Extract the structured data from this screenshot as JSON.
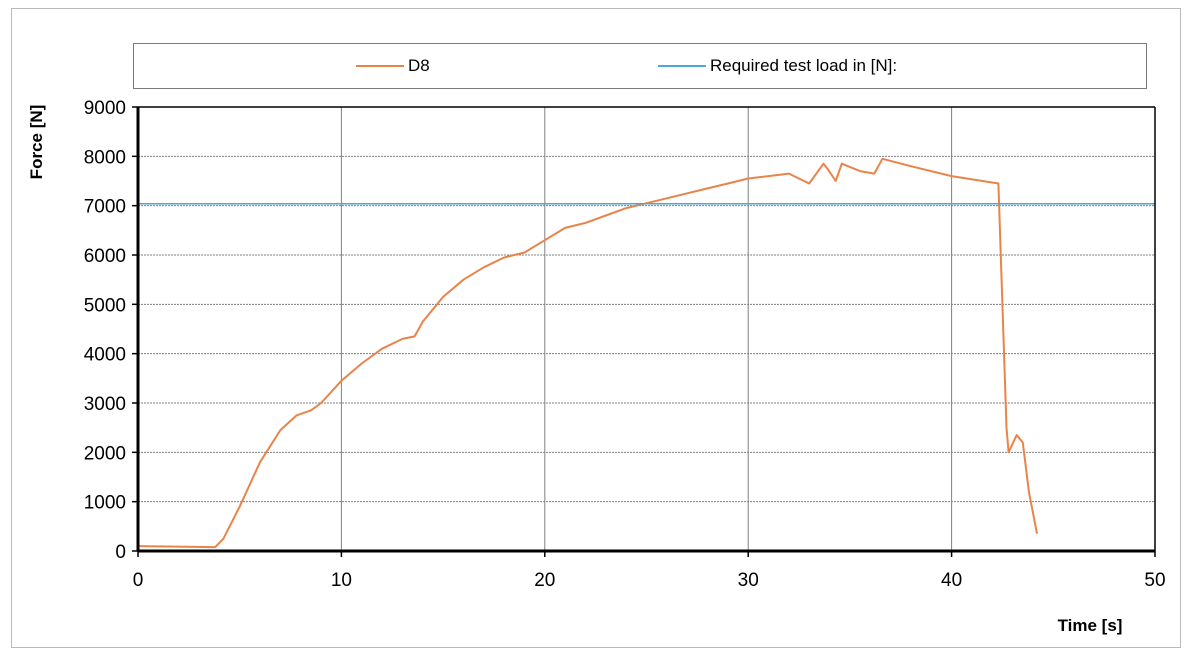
{
  "chart_data": {
    "type": "line",
    "xlabel": "Time [s]",
    "ylabel": "Force [N]",
    "xlim": [
      0,
      50
    ],
    "ylim": [
      0,
      9000
    ],
    "xticks": [
      0,
      10,
      20,
      30,
      40,
      50
    ],
    "yticks": [
      0,
      1000,
      2000,
      3000,
      4000,
      5000,
      6000,
      7000,
      8000,
      9000
    ],
    "grid": true,
    "legend_position": "top",
    "series": [
      {
        "name": "D8",
        "color": "#e8844a",
        "x": [
          0,
          3.8,
          4.2,
          5,
          6,
          7,
          7.8,
          8.5,
          9,
          10,
          11,
          12,
          13,
          13.6,
          14,
          15,
          16,
          17,
          18,
          19,
          20,
          21,
          22,
          23,
          24,
          25,
          26,
          27,
          28,
          29,
          30,
          31,
          32,
          33,
          33.7,
          33.9,
          34.3,
          34.6,
          34.9,
          35.5,
          36.2,
          36.6,
          38,
          40,
          42.3,
          42.5,
          42.7,
          42.8,
          43.2,
          43.5,
          43.8,
          44.2
        ],
        "y": [
          100,
          80,
          250,
          900,
          1800,
          2450,
          2750,
          2850,
          3000,
          3450,
          3800,
          4100,
          4300,
          4350,
          4650,
          5150,
          5500,
          5750,
          5950,
          6050,
          6300,
          6550,
          6650,
          6800,
          6950,
          7050,
          7150,
          7250,
          7350,
          7450,
          7550,
          7600,
          7650,
          7450,
          7850,
          7750,
          7500,
          7850,
          7800,
          7700,
          7650,
          7950,
          7800,
          7600,
          7450,
          5000,
          2500,
          2000,
          2350,
          2200,
          1200,
          350
        ]
      },
      {
        "name": "Required test load in [N]:",
        "color": "#4aa8d8",
        "x": [
          0,
          50
        ],
        "y": [
          7040,
          7040
        ]
      }
    ]
  }
}
